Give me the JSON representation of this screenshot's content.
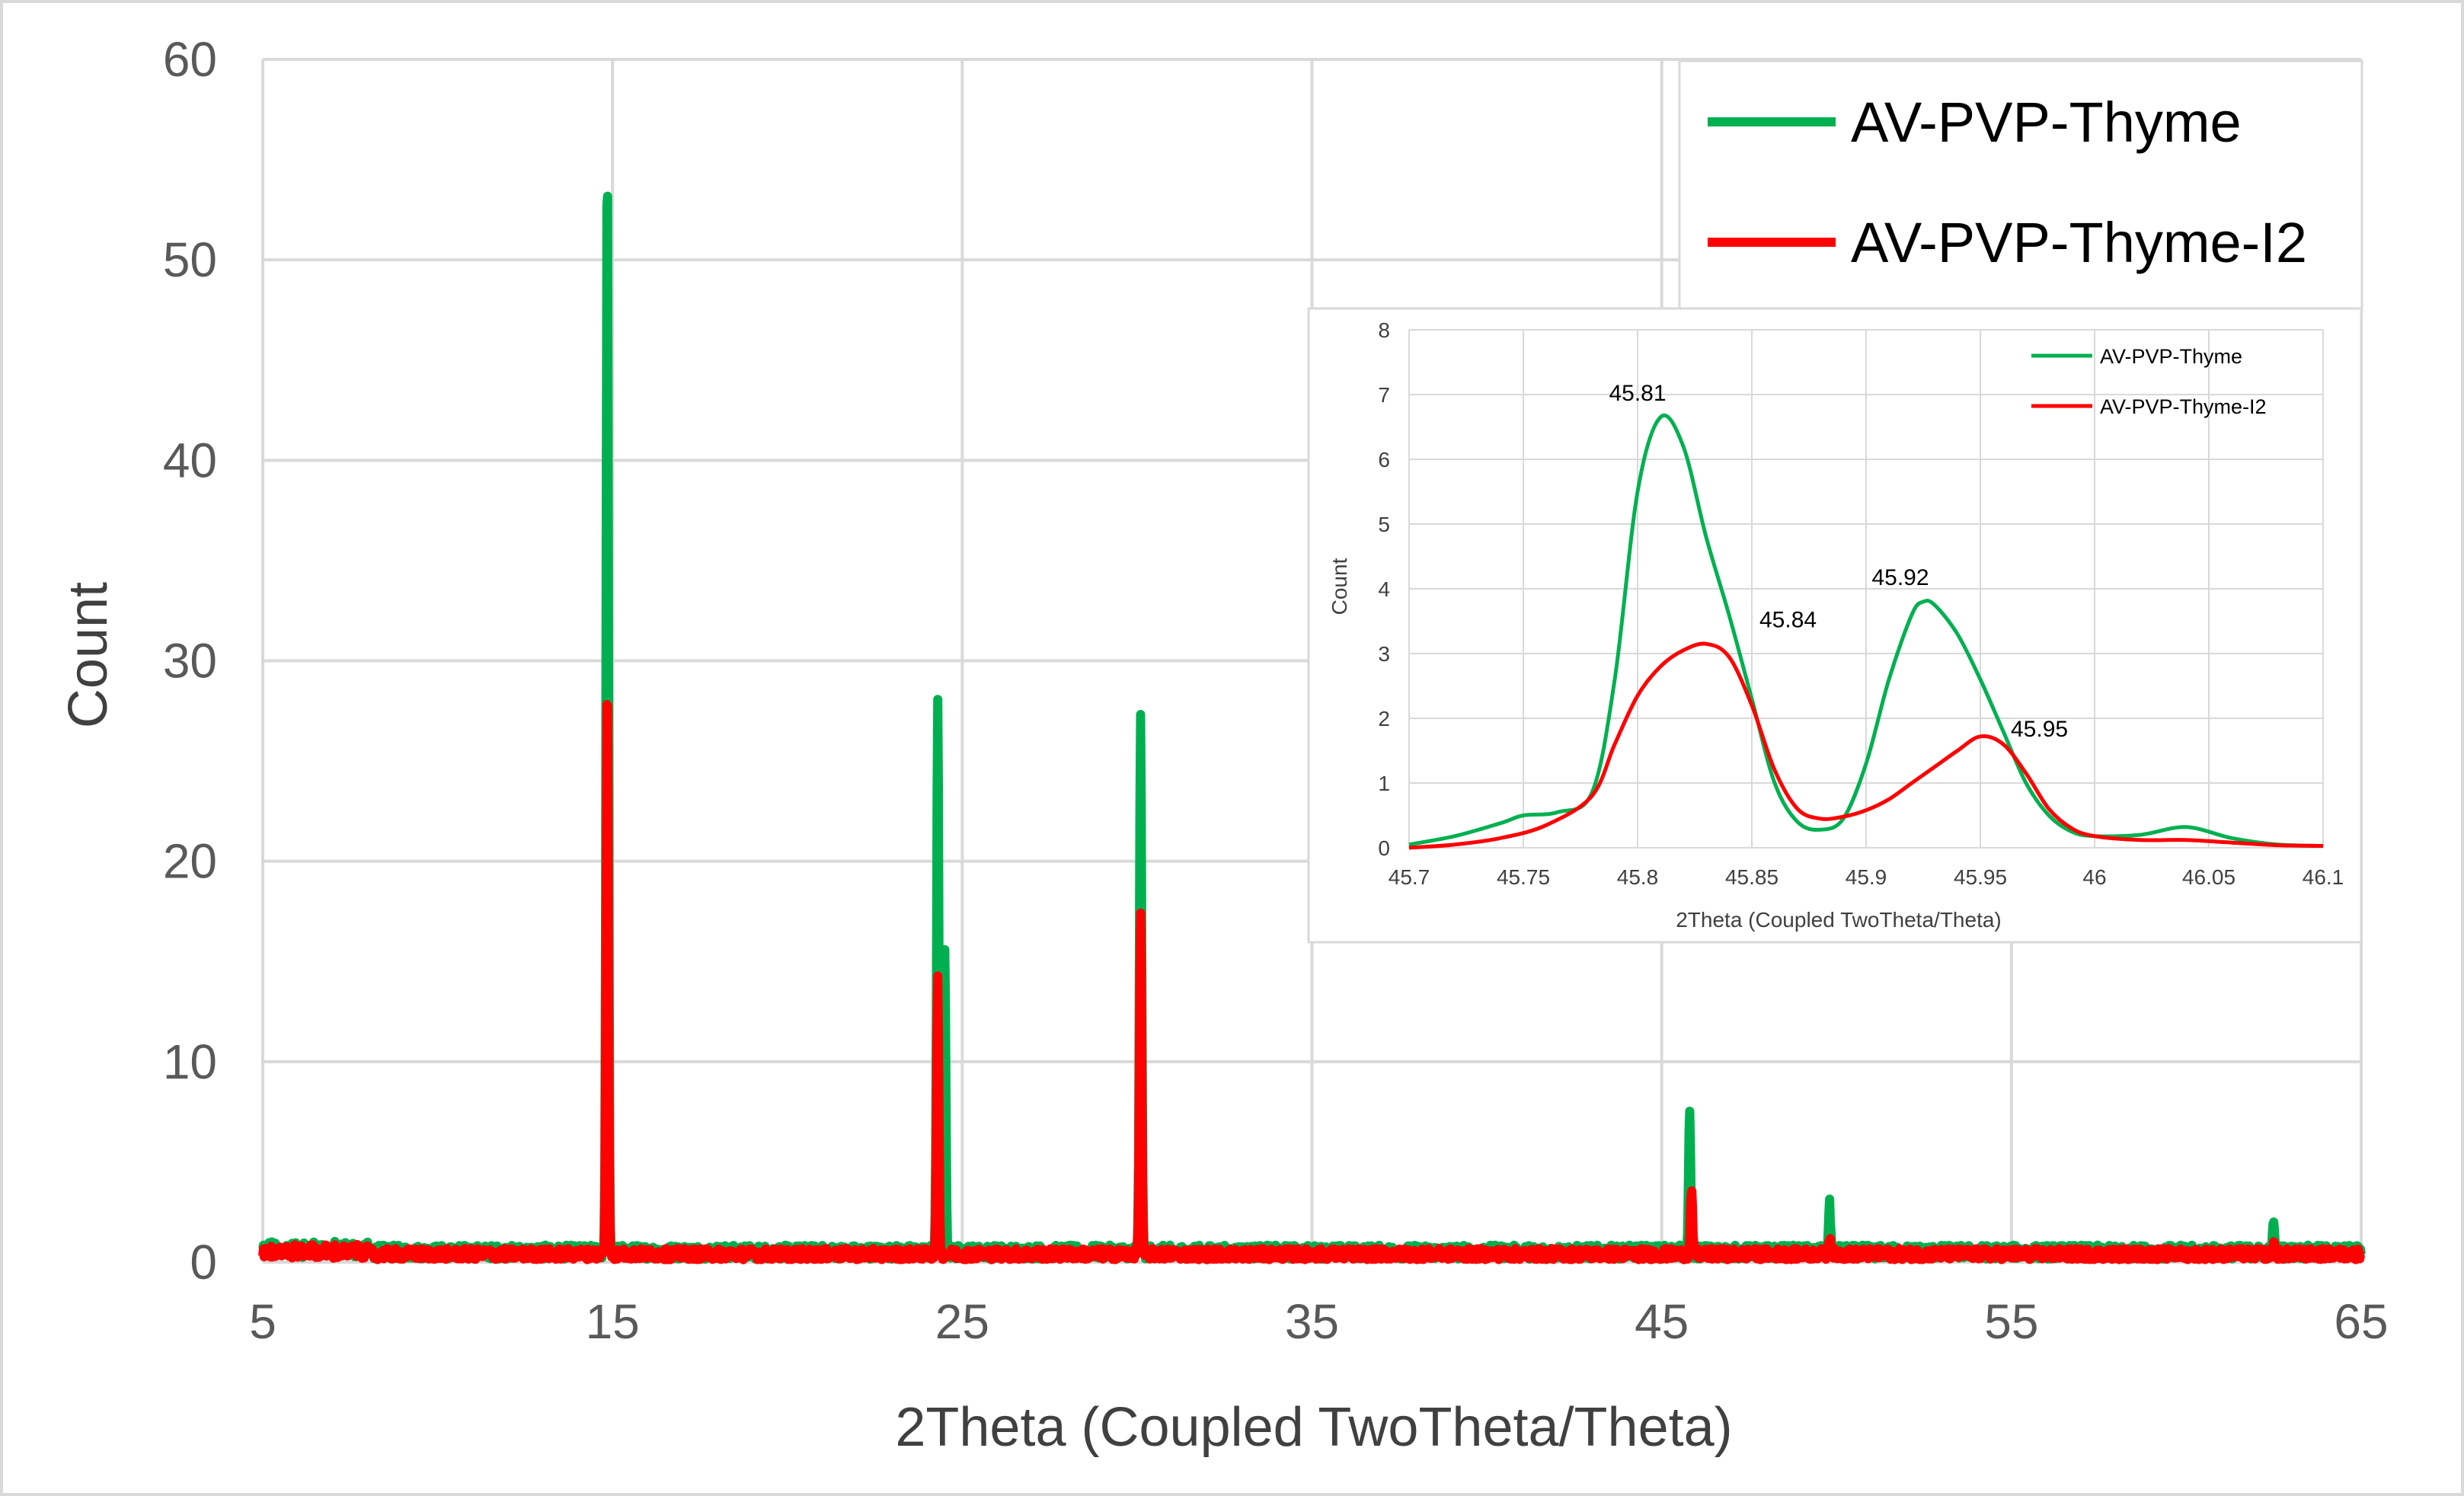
{
  "chart_data": [
    {
      "type": "line",
      "xlabel": "2Theta (Coupled TwoTheta/Theta)",
      "ylabel": "Count",
      "xlim": [
        5,
        65
      ],
      "ylim": [
        0,
        60
      ],
      "xticks": [
        "5",
        "15",
        "25",
        "35",
        "45",
        "55",
        "65"
      ],
      "yticks": [
        "0",
        "10",
        "20",
        "30",
        "40",
        "50",
        "60"
      ],
      "grid": true,
      "legend_position": "top-right",
      "colors": {
        "AV-PVP-Thyme": "#00b050",
        "AV-PVP-Thyme-I2": "#ff0000"
      },
      "series": [
        {
          "name": "AV-PVP-Thyme",
          "peaks": [
            {
              "x": 14.85,
              "y": 55.2
            },
            {
              "x": 24.3,
              "y": 27.8
            },
            {
              "x": 24.5,
              "y": 14.8
            },
            {
              "x": 30.1,
              "y": 27.0
            },
            {
              "x": 45.8,
              "y": 6.8
            },
            {
              "x": 49.8,
              "y": 2.3
            },
            {
              "x": 62.5,
              "y": 1.4
            }
          ],
          "baseline": 0.5
        },
        {
          "name": "AV-PVP-Thyme-I2",
          "peaks": [
            {
              "x": 14.85,
              "y": 28.8
            },
            {
              "x": 24.3,
              "y": 13.6
            },
            {
              "x": 30.1,
              "y": 17.0
            },
            {
              "x": 45.85,
              "y": 3.2
            },
            {
              "x": 49.8,
              "y": 0.9
            },
            {
              "x": 62.5,
              "y": 0.5
            }
          ],
          "baseline": 0.4
        }
      ]
    },
    {
      "type": "line",
      "xlabel": "2Theta (Coupled TwoTheta/Theta)",
      "ylabel": "Count",
      "xlim": [
        45.7,
        46.1
      ],
      "ylim": [
        0,
        8
      ],
      "xticks": [
        "45.7",
        "45.75",
        "45.8",
        "45.85",
        "45.9",
        "45.95",
        "46",
        "46.05",
        "46.1"
      ],
      "yticks": [
        "0",
        "1",
        "2",
        "3",
        "4",
        "5",
        "6",
        "7",
        "8"
      ],
      "grid": true,
      "legend_position": "top-right",
      "series": [
        {
          "name": "AV-PVP-Thyme",
          "x": [
            45.7,
            45.72,
            45.74,
            45.75,
            45.765,
            45.78,
            45.79,
            45.8,
            45.81,
            45.82,
            45.83,
            45.84,
            45.85,
            45.86,
            45.87,
            45.88,
            45.89,
            45.9,
            45.91,
            45.92,
            45.925,
            45.93,
            45.94,
            45.95,
            45.96,
            45.97,
            45.98,
            45.99,
            46.0,
            46.02,
            46.04,
            46.06,
            46.08,
            46.1
          ],
          "y": [
            0.05,
            0.18,
            0.38,
            0.5,
            0.55,
            0.85,
            2.6,
            5.5,
            6.65,
            6.2,
            4.8,
            3.6,
            2.3,
            1.0,
            0.4,
            0.28,
            0.45,
            1.3,
            2.6,
            3.6,
            3.8,
            3.75,
            3.3,
            2.6,
            1.8,
            1.0,
            0.5,
            0.25,
            0.18,
            0.2,
            0.32,
            0.15,
            0.05,
            0.03
          ]
        },
        {
          "name": "AV-PVP-Thyme-I2",
          "x": [
            45.7,
            45.72,
            45.74,
            45.76,
            45.78,
            45.79,
            45.8,
            45.81,
            45.82,
            45.83,
            45.84,
            45.85,
            45.86,
            45.87,
            45.88,
            45.89,
            45.9,
            45.91,
            45.92,
            45.93,
            45.94,
            45.95,
            45.96,
            45.97,
            45.98,
            45.99,
            46.0,
            46.02,
            46.04,
            46.06,
            46.08,
            46.1
          ],
          "y": [
            0.0,
            0.05,
            0.15,
            0.35,
            0.8,
            1.6,
            2.35,
            2.8,
            3.05,
            3.15,
            2.95,
            2.2,
            1.2,
            0.6,
            0.45,
            0.48,
            0.58,
            0.75,
            1.0,
            1.25,
            1.5,
            1.72,
            1.6,
            1.15,
            0.6,
            0.3,
            0.18,
            0.12,
            0.12,
            0.08,
            0.04,
            0.03
          ]
        }
      ],
      "annotations": [
        {
          "text": "45.81",
          "x": 45.81,
          "y": 6.65,
          "series": "AV-PVP-Thyme"
        },
        {
          "text": "45.84",
          "x": 45.84,
          "y": 3.15,
          "series": "AV-PVP-Thyme-I2"
        },
        {
          "text": "45.92",
          "x": 45.92,
          "y": 3.8,
          "series": "AV-PVP-Thyme"
        },
        {
          "text": "45.95",
          "x": 45.95,
          "y": 1.72,
          "series": "AV-PVP-Thyme-I2"
        }
      ]
    }
  ]
}
